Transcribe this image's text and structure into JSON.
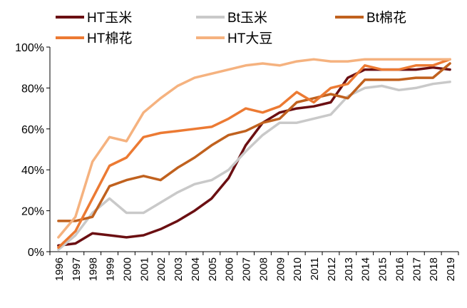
{
  "chart_data": {
    "type": "line",
    "title": "",
    "xlabel": "",
    "ylabel": "",
    "x": [
      "1996",
      "1997",
      "1998",
      "1999",
      "2000",
      "2001",
      "2002",
      "2003",
      "2004",
      "2005",
      "2006",
      "2007",
      "2008",
      "2009",
      "2010",
      "2011",
      "2012",
      "2013",
      "2014",
      "2015",
      "2016",
      "2017",
      "2018",
      "2019"
    ],
    "ylim": [
      0,
      100
    ],
    "yticks": [
      "0%",
      "20%",
      "40%",
      "60%",
      "80%",
      "100%"
    ],
    "grid": false,
    "legend_position": "top",
    "series": [
      {
        "name": "HT玉米",
        "color": "#6b0f12",
        "values": [
          3,
          4,
          9,
          8,
          7,
          8,
          11,
          15,
          20,
          26,
          36,
          52,
          63,
          68,
          70,
          71,
          73,
          85,
          89,
          89,
          89,
          89,
          90,
          89
        ]
      },
      {
        "name": "Bt玉米",
        "color": "#c9c9c9",
        "values": [
          1,
          8,
          19,
          26,
          19,
          19,
          24,
          29,
          33,
          35,
          40,
          49,
          57,
          63,
          63,
          65,
          67,
          76,
          80,
          81,
          79,
          80,
          82,
          83
        ]
      },
      {
        "name": "Bt棉花",
        "color": "#c0611e",
        "values": [
          15,
          15,
          17,
          32,
          35,
          37,
          35,
          41,
          46,
          52,
          57,
          59,
          63,
          65,
          73,
          75,
          77,
          75,
          84,
          84,
          84,
          85,
          85,
          92
        ]
      },
      {
        "name": "HT棉花",
        "color": "#ec7a33",
        "values": [
          2,
          10,
          26,
          42,
          46,
          56,
          58,
          59,
          60,
          61,
          65,
          70,
          68,
          71,
          78,
          73,
          80,
          82,
          91,
          89,
          89,
          91,
          91,
          94
        ]
      },
      {
        "name": "HT大豆",
        "color": "#f5b27f",
        "values": [
          7,
          17,
          44,
          56,
          54,
          68,
          75,
          81,
          85,
          87,
          89,
          91,
          92,
          91,
          93,
          94,
          93,
          93,
          94,
          94,
          94,
          94,
          94,
          94
        ]
      }
    ]
  }
}
